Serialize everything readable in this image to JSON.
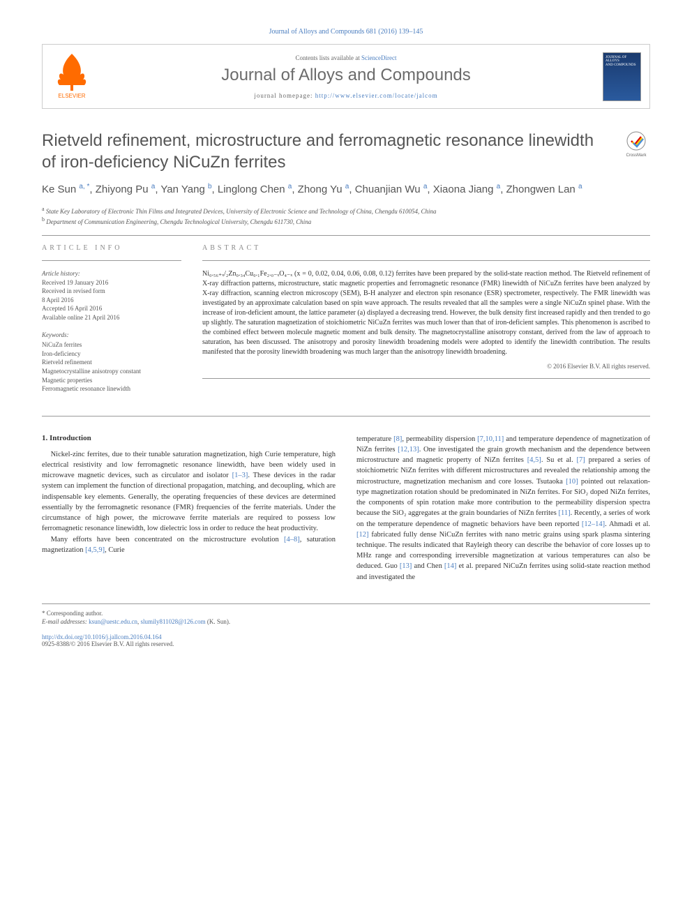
{
  "running_header": "Journal of Alloys and Compounds 681 (2016) 139–145",
  "banner": {
    "contents_text": "Contents lists available at ",
    "contents_link": "ScienceDirect",
    "journal_name": "Journal of Alloys and Compounds",
    "homepage_label": "journal homepage: ",
    "homepage_url": "http://www.elsevier.com/locate/jalcom",
    "publisher": "ELSEVIER",
    "cover_line1": "JOURNAL OF",
    "cover_line2": "ALLOYS",
    "cover_line3": "AND COMPOUNDS"
  },
  "title": "Rietveld refinement, microstructure and ferromagnetic resonance linewidth of iron-deficiency NiCuZn ferrites",
  "crossmark_label": "CrossMark",
  "authors_html": "Ke Sun <sup>a, *</sup>, Zhiyong Pu <sup>a</sup>, Yan Yang <sup>b</sup>, Linglong Chen <sup>a</sup>, Zhong Yu <sup>a</sup>, Chuanjian Wu <sup>a</sup>, Xiaona Jiang <sup>a</sup>, Zhongwen Lan <sup>a</sup>",
  "affiliations": [
    {
      "mark": "a",
      "text": "State Key Laboratory of Electronic Thin Films and Integrated Devices, University of Electronic Science and Technology of China, Chengdu 610054, China"
    },
    {
      "mark": "b",
      "text": "Department of Communication Engineering, Chengdu Technological University, Chengdu 611730, China"
    }
  ],
  "labels": {
    "article_info": "ARTICLE INFO",
    "abstract": "ABSTRACT",
    "history_head": "Article history:",
    "keywords_head": "Keywords:"
  },
  "history": [
    "Received 19 January 2016",
    "Received in revised form",
    "8 April 2016",
    "Accepted 16 April 2016",
    "Available online 21 April 2016"
  ],
  "keywords": [
    "NiCuZn ferrites",
    "Iron-deficiency",
    "Rietveld refinement",
    "Magnetocrystalline anisotropy constant",
    "Magnetic properties",
    "Ferromagnetic resonance linewidth"
  ],
  "abstract": "Ni₀.₅₆₊ₓ/₂Zn₀.₃₄Cu₀.₁Fe₂.₀₋ₓO₄₋ₓ (x = 0, 0.02, 0.04, 0.06, 0.08, 0.12) ferrites have been prepared by the solid-state reaction method. The Rietveld refinement of X-ray diffraction patterns, microstructure, static magnetic properties and ferromagnetic resonance (FMR) linewidth of NiCuZn ferrites have been analyzed by X-ray diffraction, scanning electron microscopy (SEM), B-H analyzer and electron spin resonance (ESR) spectrometer, respectively. The FMR linewidth was investigated by an approximate calculation based on spin wave approach. The results revealed that all the samples were a single NiCuZn spinel phase. With the increase of iron-deficient amount, the lattice parameter (a) displayed a decreasing trend. However, the bulk density first increased rapidly and then trended to go up slightly. The saturation magnetization of stoichiometric NiCuZn ferrites was much lower than that of iron-deficient samples. This phenomenon is ascribed to the combined effect between molecule magnetic moment and bulk density. The magnetocrystalline anisotropy constant, derived from the law of approach to saturation, has been discussed. The anisotropy and porosity linewidth broadening models were adopted to identify the linewidth contribution. The results manifested that the porosity linewidth broadening was much larger than the anisotropy linewidth broadening.",
  "copyright": "© 2016 Elsevier B.V. All rights reserved.",
  "sections": {
    "intro_number": "1.",
    "intro_title": "Introduction"
  },
  "body": {
    "col1_p1": "Nickel-zinc ferrites, due to their tunable saturation magnetization, high Curie temperature, high electrical resistivity and low ferromagnetic resonance linewidth, have been widely used in microwave magnetic devices, such as circulator and isolator [1–3]. These devices in the radar system can implement the function of directional propagation, matching, and decoupling, which are indispensable key elements. Generally, the operating frequencies of these devices are determined essentially by the ferromagnetic resonance (FMR) frequencies of the ferrite materials. Under the circumstance of high power, the microwave ferrite materials are required to possess low ferromagnetic resonance linewidth, low dielectric loss in order to reduce the heat productivity.",
    "col1_p2": "Many efforts have been concentrated on the microstructure evolution [4–8], saturation magnetization [4,5,9], Curie",
    "col2_p1": "temperature [8], permeability dispersion [7,10,11] and temperature dependence of magnetization of NiZn ferrites [12,13]. One investigated the grain growth mechanism and the dependence between microstructure and magnetic property of NiZn ferrites [4,5]. Su et al. [7] prepared a series of stoichiometric NiZn ferrites with different microstructures and revealed the relationship among the microstructure, magnetization mechanism and core losses. Tsutaoka [10] pointed out relaxation-type magnetization rotation should be predominated in NiZn ferrites. For SiO₂ doped NiZn ferrites, the components of spin rotation make more contribution to the permeability dispersion spectra because the SiO₂ aggregates at the grain boundaries of NiZn ferrites [11]. Recently, a series of work on the temperature dependence of magnetic behaviors have been reported [12–14]. Ahmadi et al. [12] fabricated fully dense NiCuZn ferrites with nano metric grains using spark plasma sintering technique. The results indicated that Rayleigh theory can describe the behavior of core losses up to MHz range and corresponding irreversible magnetization at various temperatures can also be deduced. Guo [13] and Chen [14] et al. prepared NiCuZn ferrites using solid-state reaction method and investigated the"
  },
  "footer": {
    "corr_label": "* Corresponding author.",
    "email_label": "E-mail addresses: ",
    "email1": "ksun@uestc.edu.cn",
    "email2": "slumily811028@126.com",
    "email_tail": " (K. Sun).",
    "doi_url": "http://dx.doi.org/10.1016/j.jallcom.2016.04.164",
    "issn": "0925-8388/© 2016 Elsevier B.V. All rights reserved."
  },
  "colors": {
    "link": "#4a7dbf",
    "heading_gray": "#555555",
    "elsevier_orange": "#ff6b00"
  }
}
